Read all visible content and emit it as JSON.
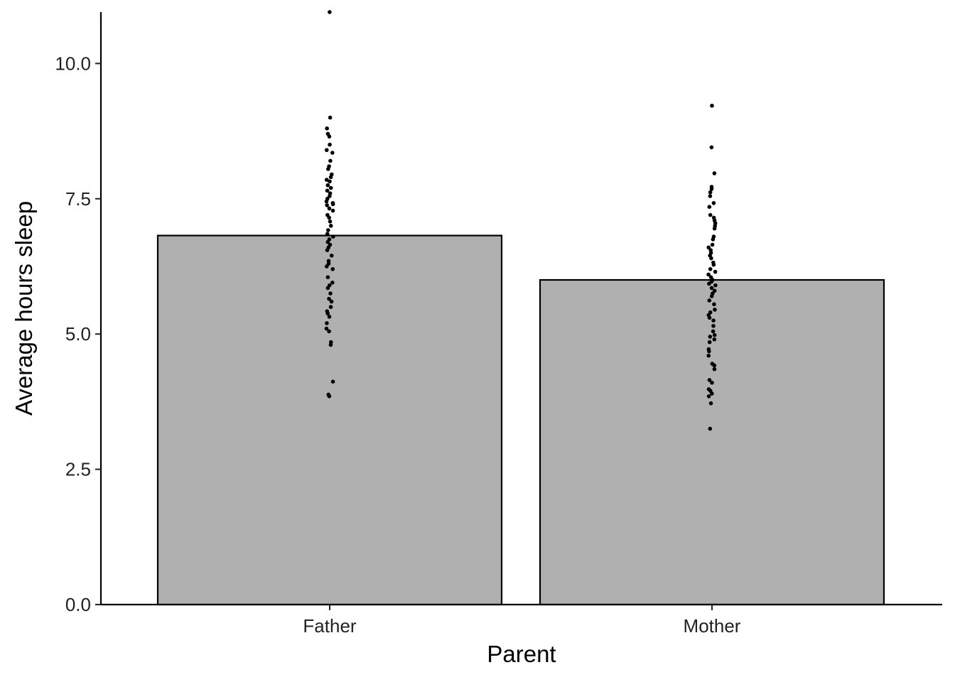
{
  "chart_data": {
    "type": "bar",
    "xlabel": "Parent",
    "ylabel": "Average hours sleep",
    "categories": [
      "Father",
      "Mother"
    ],
    "values": [
      6.82,
      6.0
    ],
    "ylim": [
      0,
      10.95
    ],
    "y_ticks": [
      0,
      2.5,
      5,
      7.5,
      10
    ],
    "y_tick_labels": [
      "0.0",
      "2.5",
      "5.0",
      "7.5",
      "10.0"
    ],
    "grid": false,
    "legend": "none",
    "bar_fill": "#b0b0b0",
    "bar_outline": "#000000",
    "point_color": "#000000",
    "points": {
      "Father": [
        10.95,
        9.0,
        8.8,
        8.7,
        8.65,
        8.5,
        8.4,
        8.35,
        8.2,
        8.1,
        8.05,
        7.95,
        7.9,
        7.85,
        7.82,
        7.75,
        7.7,
        7.65,
        7.6,
        7.55,
        7.5,
        7.45,
        7.42,
        7.4,
        7.38,
        7.32,
        7.28,
        7.2,
        7.15,
        7.08,
        7.0,
        6.92,
        6.85,
        6.8,
        6.75,
        6.7,
        6.65,
        6.6,
        6.55,
        6.45,
        6.35,
        6.3,
        6.25,
        6.2,
        6.05,
        5.95,
        5.9,
        5.85,
        5.75,
        5.65,
        5.6,
        5.5,
        5.42,
        5.38,
        5.32,
        5.2,
        5.1,
        5.05,
        4.85,
        4.8,
        4.12,
        3.88,
        3.85
      ],
      "Mother": [
        9.22,
        8.45,
        7.97,
        7.72,
        7.68,
        7.62,
        7.55,
        7.42,
        7.35,
        7.2,
        7.15,
        7.1,
        7.05,
        7.0,
        6.95,
        6.8,
        6.75,
        6.65,
        6.6,
        6.55,
        6.5,
        6.45,
        6.4,
        6.32,
        6.28,
        6.2,
        6.15,
        6.1,
        6.05,
        6.0,
        5.97,
        5.93,
        5.9,
        5.85,
        5.8,
        5.75,
        5.7,
        5.62,
        5.55,
        5.45,
        5.4,
        5.35,
        5.3,
        5.25,
        5.15,
        5.05,
        4.98,
        4.95,
        4.9,
        4.85,
        4.72,
        4.68,
        4.6,
        4.45,
        4.42,
        4.35,
        4.15,
        4.1,
        3.98,
        3.95,
        3.9,
        3.85,
        3.72,
        3.25
      ]
    }
  }
}
